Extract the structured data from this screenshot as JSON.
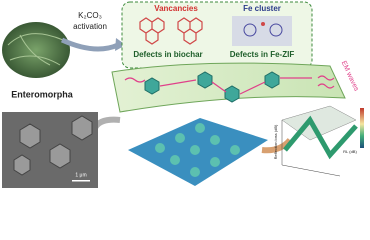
{
  "labels": {
    "reagent": "K₂CO₃",
    "process": "activation",
    "source": "Enteromorpha",
    "vacancies": "Vancancies",
    "fe_cluster": "Fe cluster",
    "defects_biochar": "Defects in biochar",
    "defects_zif": "Defects in Fe-ZIF",
    "em_waves": "EM waves",
    "scale_bar": "1 μm",
    "plot_z_axis": "Reflection loss (dB)",
    "plot_colorbar": "RL (dB)"
  }
}
